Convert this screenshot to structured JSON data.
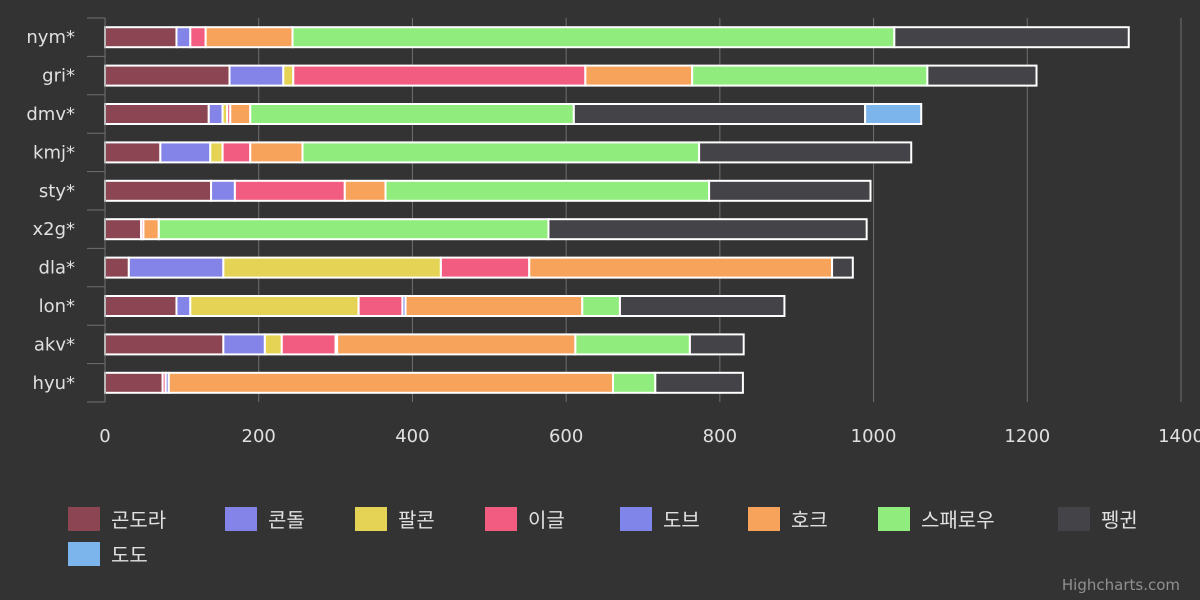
{
  "chart_data": {
    "type": "bar",
    "orientation": "horizontal",
    "stacking": "normal",
    "categories": [
      "nym*",
      "gri*",
      "dmv*",
      "kmj*",
      "sty*",
      "x2g*",
      "dla*",
      "lon*",
      "akv*",
      "hyu*"
    ],
    "xlim": [
      0,
      1400
    ],
    "ticks": [
      0,
      200,
      400,
      600,
      800,
      1000,
      1200,
      1400
    ],
    "grid": true,
    "legend_position": "bottom",
    "series": [
      {
        "name": "곤도라",
        "color": "#8B4553",
        "values": [
          93,
          162,
          135,
          72,
          138,
          47,
          31,
          93,
          154,
          75
        ]
      },
      {
        "name": "콘돌",
        "color": "#8484E8",
        "values": [
          18,
          70,
          18,
          65,
          31,
          0,
          123,
          18,
          54,
          0
        ]
      },
      {
        "name": "팔콘",
        "color": "#E4D354",
        "values": [
          0,
          13,
          6,
          16,
          0,
          0,
          283,
          219,
          22,
          0
        ]
      },
      {
        "name": "이글",
        "color": "#F15C80",
        "values": [
          20,
          380,
          4,
          36,
          143,
          3,
          115,
          57,
          70,
          4
        ]
      },
      {
        "name": "도브",
        "color": "#8085E9",
        "values": [
          0,
          0,
          0,
          0,
          0,
          0,
          0,
          4,
          2,
          4
        ]
      },
      {
        "name": "호크",
        "color": "#F7A35C",
        "values": [
          113,
          139,
          26,
          68,
          53,
          20,
          394,
          230,
          310,
          578
        ]
      },
      {
        "name": "스패로우",
        "color": "#90ED7D",
        "values": [
          783,
          306,
          421,
          516,
          421,
          507,
          0,
          49,
          149,
          55
        ]
      },
      {
        "name": "펭귄",
        "color": "#434348",
        "values": [
          305,
          142,
          379,
          276,
          210,
          414,
          27,
          214,
          70,
          114
        ]
      },
      {
        "name": "도도",
        "color": "#7CB5EC",
        "values": [
          0,
          0,
          73,
          0,
          0,
          0,
          0,
          0,
          0,
          0
        ]
      }
    ]
  },
  "credits": "Highcharts.com"
}
